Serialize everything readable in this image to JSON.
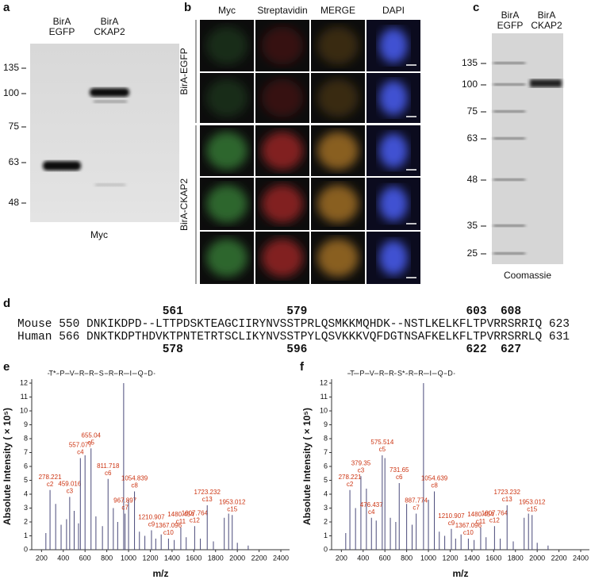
{
  "panels": {
    "a": {
      "letter": "a",
      "lanes": [
        [
          "BirA",
          "EGFP"
        ],
        [
          "BirA",
          "CKAP2"
        ]
      ],
      "markers": [
        135,
        100,
        75,
        63,
        48
      ],
      "caption": "Myc"
    },
    "b": {
      "letter": "b",
      "columns": [
        "Myc",
        "Streptavidin",
        "MERGE",
        "DAPI"
      ],
      "row_groups": [
        "BirA-EGFP",
        "BirA-CKAP2"
      ]
    },
    "c": {
      "letter": "c",
      "lanes": [
        [
          "BirA",
          "EGFP"
        ],
        [
          "BirA",
          "CKAP2"
        ]
      ],
      "markers": [
        135,
        100,
        75,
        63,
        48,
        35,
        25
      ],
      "caption": "Coomassie"
    },
    "d": {
      "letter": "d",
      "top_positions": [
        561,
        579,
        603,
        608
      ],
      "bottom_positions": [
        578,
        596,
        622,
        627
      ],
      "highlight_color": "#d42a1e",
      "rows": [
        {
          "species": "Mouse",
          "start": 550,
          "end": 623,
          "segments": [
            {
              "text": "DNKIKDPD--LT"
            },
            {
              "text": "T",
              "highlight": true
            },
            {
              "text": "PDSKTEAGCIIRYNVSS"
            },
            {
              "text": "T",
              "highlight": true
            },
            {
              "text": "PRLQSMKKMQHDK--NSTLKELKFL"
            },
            {
              "text": "T",
              "highlight": true
            },
            {
              "text": "PVRR"
            },
            {
              "text": "S",
              "highlight": true
            },
            {
              "text": "RRIQ"
            }
          ]
        },
        {
          "species": "Human",
          "start": 566,
          "end": 631,
          "segments": [
            {
              "text": "DNKTKDPTHDVK"
            },
            {
              "text": "T",
              "highlight": true
            },
            {
              "text": "PNTETRTSCLIKYNVSS"
            },
            {
              "text": "T",
              "highlight": true
            },
            {
              "text": "PYLQSVKKKVQFDGTNSAFKELKFL"
            },
            {
              "text": "T",
              "highlight": true
            },
            {
              "text": "PVRR"
            },
            {
              "text": "S",
              "highlight": true
            },
            {
              "text": "RRLQ"
            }
          ]
        }
      ]
    }
  },
  "chart_data": [
    {
      "type": "spectrum",
      "letter": "e",
      "sequence": [
        "T*",
        "P",
        "V",
        "R",
        "R",
        "S",
        "R",
        "R",
        "I",
        "Q",
        "D"
      ],
      "x_label": "m/z",
      "y_label": "Absolute Intensity ( × 10⁵)",
      "xlim": [
        110,
        2480
      ],
      "ylim": [
        0,
        12
      ],
      "xticks": [
        200,
        400,
        600,
        800,
        1000,
        1200,
        1400,
        1600,
        1800,
        2000,
        2200,
        2400
      ],
      "yticks": [
        0,
        1,
        2,
        3,
        4,
        5,
        6,
        7,
        8,
        9,
        10,
        11,
        12
      ],
      "color": "#4a4a7a",
      "label_color": "#cc3311",
      "peaks": {
        "x": [
          278.221,
          459.016,
          557.077,
          655.04,
          811.718,
          967.897,
          1054.839,
          1210.907,
          1367.096,
          1480.454,
          1607.764,
          1723.232,
          1953.012
        ],
        "values": [
          4.3,
          3.8,
          6.6,
          7.3,
          5.1,
          2.6,
          4.2,
          1.4,
          0.8,
          1.6,
          1.7,
          3.2,
          2.5
        ],
        "ions": [
          "c2",
          "c3",
          "c4",
          "c5",
          "c6",
          "c7",
          "c8",
          "c9",
          "c10",
          "c11",
          "c12",
          "c13",
          "c15"
        ]
      },
      "other_peaks": {
        "x": [
          240,
          330,
          380,
          430,
          500,
          540,
          600,
          700,
          760,
          860,
          900,
          955,
          1000,
          1100,
          1150,
          1250,
          1300,
          1420,
          1530,
          1660,
          1780,
          1880,
          1920,
          2000,
          2100
        ],
        "values": [
          1.2,
          3.3,
          1.8,
          2.2,
          2.8,
          1.9,
          6.8,
          2.4,
          1.7,
          3.0,
          2.0,
          12,
          3.6,
          1.3,
          1.0,
          0.8,
          1.1,
          0.7,
          0.9,
          0.8,
          0.6,
          2.3,
          2.6,
          0.5,
          0.3
        ]
      }
    },
    {
      "type": "spectrum",
      "letter": "f",
      "sequence": [
        "T",
        "P",
        "V",
        "R",
        "R",
        "S*",
        "R",
        "R",
        "I",
        "Q",
        "D"
      ],
      "x_label": "m/z",
      "y_label": "Absolute Intensity ( × 10⁵)",
      "xlim": [
        110,
        2480
      ],
      "ylim": [
        0,
        12
      ],
      "xticks": [
        200,
        400,
        600,
        800,
        1000,
        1200,
        1400,
        1600,
        1800,
        2000,
        2200,
        2400
      ],
      "yticks": [
        0,
        1,
        2,
        3,
        4,
        5,
        6,
        7,
        8,
        9,
        10,
        11,
        12
      ],
      "color": "#4a4a7a",
      "label_color": "#cc3311",
      "peaks": {
        "x": [
          278.221,
          379.35,
          476.437,
          575.514,
          731.65,
          887.774,
          1054.639,
          1210.907,
          1367.096,
          1480.454,
          1607.764,
          1723.232,
          1953.012
        ],
        "values": [
          4.3,
          5.3,
          2.3,
          6.8,
          4.8,
          2.6,
          4.2,
          1.5,
          0.8,
          1.6,
          1.7,
          3.2,
          2.5
        ],
        "ions": [
          "c2",
          "c3",
          "c4",
          "c5",
          "c6",
          "c7",
          "c8",
          "c9",
          "c10",
          "c11",
          "c12",
          "c13",
          "c15"
        ]
      },
      "other_peaks": {
        "x": [
          240,
          330,
          430,
          520,
          600,
          650,
          700,
          800,
          850,
          955,
          1000,
          1100,
          1150,
          1250,
          1300,
          1420,
          1530,
          1660,
          1780,
          1880,
          1920,
          2000,
          2100
        ],
        "values": [
          1.2,
          3.0,
          4.4,
          2.1,
          6.6,
          2.3,
          2.0,
          3.3,
          1.8,
          12,
          3.6,
          1.3,
          1.0,
          0.8,
          1.1,
          0.7,
          0.9,
          0.8,
          0.6,
          2.3,
          2.6,
          0.5,
          0.3
        ]
      }
    }
  ]
}
